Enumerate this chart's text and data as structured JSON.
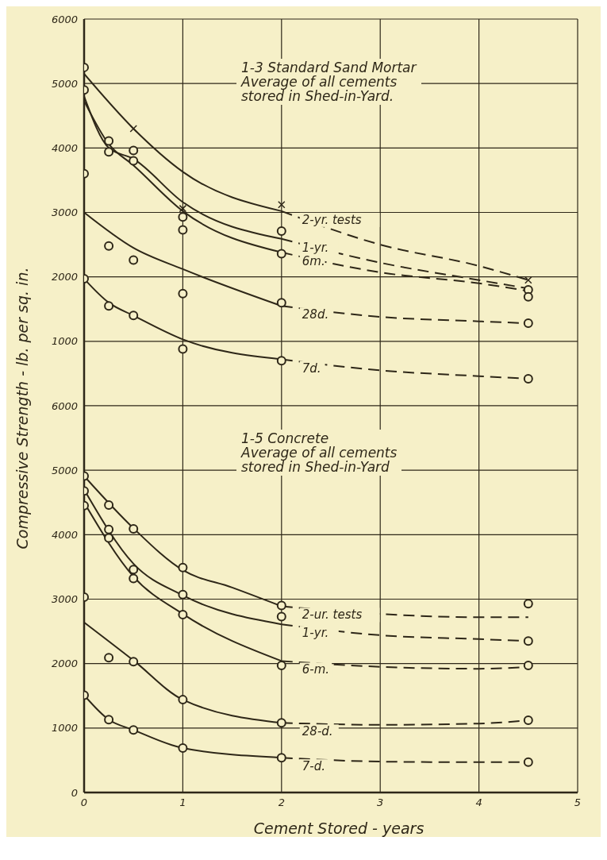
{
  "chart_data": [
    {
      "type": "line",
      "annotations": [
        "1-3 Standard Sand Mortar",
        "Average of all cements",
        "stored in Shed-in-Yard."
      ],
      "ylabel": "Compressive Strength - lb. per sq. in.",
      "xlim": [
        0,
        5
      ],
      "xticks": [
        0,
        1,
        2,
        3,
        4,
        5
      ],
      "ylim": [
        0,
        6000
      ],
      "yticks": [
        1000,
        2000,
        3000,
        4000,
        5000,
        6000
      ],
      "tick_labels": "y",
      "grid": true,
      "legend": false,
      "series": [
        {
          "name": "2-yr. tests",
          "color": "#2e2718",
          "x": [
            0,
            0.5,
            1,
            2
          ],
          "values": [
            5150,
            4300,
            3630,
            3020
          ],
          "line_style": "solid"
        },
        {
          "color": "#2e2718",
          "x": [
            2,
            3,
            4,
            4.5
          ],
          "values": [
            3020,
            2500,
            2170,
            1950
          ],
          "line_style": "dashed"
        },
        {
          "type": "scatter",
          "marker": "cross",
          "color": "#2e2718",
          "x": [
            0.5,
            1,
            2,
            4.5
          ],
          "values": [
            4300,
            3060,
            3120,
            1950
          ]
        },
        {
          "name": "1-yr.",
          "color": "#2e2718",
          "x": [
            0,
            0.25,
            0.5,
            1,
            2
          ],
          "values": [
            4800,
            4000,
            3830,
            3160,
            2590
          ],
          "line_style": "solid"
        },
        {
          "color": "#2e2718",
          "x": [
            2,
            3,
            4,
            4.5
          ],
          "values": [
            2590,
            2220,
            1950,
            1820
          ],
          "line_style": "dashed"
        },
        {
          "type": "scatter",
          "marker": "circle",
          "color": "#2e2718",
          "x": [
            0,
            0.25,
            0.5,
            1,
            2,
            4.5
          ],
          "values": [
            4900,
            3940,
            3960,
            2930,
            2710,
            1800
          ]
        },
        {
          "name": "6m.",
          "color": "#2e2718",
          "x": [
            0,
            0.25,
            0.5,
            1,
            2
          ],
          "values": [
            4730,
            4060,
            3730,
            3020,
            2380
          ],
          "line_style": "solid"
        },
        {
          "color": "#2e2718",
          "x": [
            2,
            3,
            4,
            4.5
          ],
          "values": [
            2380,
            2070,
            1900,
            1780
          ],
          "line_style": "dashed"
        },
        {
          "type": "scatter",
          "marker": "circle",
          "color": "#2e2718",
          "x": [
            0,
            0,
            0.25,
            0.5,
            1,
            2,
            4.5
          ],
          "values": [
            5250,
            3600,
            4110,
            3800,
            2730,
            2360,
            1690
          ]
        },
        {
          "name": "28d.",
          "color": "#2e2718",
          "x": [
            0,
            0.5,
            1,
            2
          ],
          "values": [
            3000,
            2450,
            2120,
            1550
          ],
          "line_style": "solid"
        },
        {
          "color": "#2e2718",
          "x": [
            2,
            3,
            4,
            4.5
          ],
          "values": [
            1550,
            1380,
            1310,
            1280
          ],
          "line_style": "dashed"
        },
        {
          "type": "scatter",
          "marker": "circle",
          "color": "#2e2718",
          "x": [
            0.25,
            0.5,
            1,
            2,
            4.5
          ],
          "values": [
            2480,
            2260,
            1740,
            1600,
            1280
          ]
        },
        {
          "name": "7d.",
          "color": "#2e2718",
          "x": [
            0,
            0.25,
            0.5,
            1,
            2
          ],
          "values": [
            1970,
            1600,
            1400,
            1030,
            720
          ],
          "line_style": "solid"
        },
        {
          "color": "#2e2718",
          "x": [
            2,
            3,
            4,
            4.5
          ],
          "values": [
            720,
            550,
            460,
            420
          ],
          "line_style": "dashed"
        },
        {
          "type": "scatter",
          "marker": "circle",
          "color": "#2e2718",
          "x": [
            0,
            0.25,
            0.5,
            1,
            2,
            4.5
          ],
          "values": [
            1970,
            1550,
            1400,
            880,
            700,
            420
          ]
        }
      ]
    },
    {
      "type": "line",
      "annotations": [
        "1-5 Concrete",
        "Average of all cements",
        "stored in Shed-in-Yard"
      ],
      "xlabel": "Cement Stored - years",
      "xlim": [
        0,
        5
      ],
      "xticks": [
        0,
        1,
        2,
        3,
        4,
        5
      ],
      "ylim": [
        0,
        6000
      ],
      "yticks": [
        0,
        1000,
        2000,
        3000,
        4000,
        5000,
        6000
      ],
      "grid": true,
      "legend": false,
      "series": [
        {
          "name": "2-ur. tests",
          "color": "#2e2718",
          "x": [
            0,
            0.5,
            1,
            1.5,
            2
          ],
          "values": [
            4910,
            4100,
            3450,
            3180,
            2890
          ],
          "line_style": "solid"
        },
        {
          "color": "#2e2718",
          "x": [
            2,
            3,
            4,
            4.5
          ],
          "values": [
            2890,
            2770,
            2720,
            2720
          ],
          "line_style": "dashed"
        },
        {
          "type": "scatter",
          "marker": "circle",
          "color": "#2e2718",
          "x": [
            0,
            0.25,
            0.5,
            1,
            2,
            4.5
          ],
          "values": [
            4910,
            4460,
            4090,
            3490,
            2900,
            2930
          ]
        },
        {
          "name": "1-yr.",
          "color": "#2e2718",
          "x": [
            0,
            0.5,
            1,
            2
          ],
          "values": [
            4700,
            3550,
            3060,
            2610
          ],
          "line_style": "solid"
        },
        {
          "color": "#2e2718",
          "x": [
            2,
            3,
            4,
            4.5
          ],
          "values": [
            2610,
            2440,
            2380,
            2350
          ],
          "line_style": "dashed"
        },
        {
          "type": "scatter",
          "marker": "circle",
          "color": "#2e2718",
          "x": [
            0,
            0.25,
            0.5,
            1,
            2,
            4.5
          ],
          "values": [
            4680,
            4080,
            3460,
            3070,
            2730,
            2350
          ]
        },
        {
          "name": "6-m.",
          "color": "#2e2718",
          "x": [
            0,
            0.5,
            1,
            2
          ],
          "values": [
            4500,
            3350,
            2770,
            2040
          ],
          "line_style": "solid"
        },
        {
          "color": "#2e2718",
          "x": [
            2,
            3,
            4,
            4.5
          ],
          "values": [
            2040,
            1950,
            1920,
            1950
          ],
          "line_style": "dashed"
        },
        {
          "type": "scatter",
          "marker": "circle",
          "color": "#2e2718",
          "x": [
            0,
            0.25,
            0.5,
            1,
            2,
            4.5
          ],
          "values": [
            4450,
            3950,
            3320,
            2760,
            1970,
            1970
          ]
        },
        {
          "name": "28-d.",
          "color": "#2e2718",
          "x": [
            0,
            0.5,
            1,
            2
          ],
          "values": [
            2640,
            2050,
            1440,
            1080
          ],
          "line_style": "solid"
        },
        {
          "color": "#2e2718",
          "x": [
            2,
            3,
            4,
            4.5
          ],
          "values": [
            1080,
            1050,
            1070,
            1120
          ],
          "line_style": "dashed"
        },
        {
          "type": "scatter",
          "marker": "circle",
          "color": "#2e2718",
          "x": [
            0,
            0.25,
            0.5,
            1,
            2,
            4.5
          ],
          "values": [
            3030,
            2090,
            2030,
            1440,
            1080,
            1120
          ]
        },
        {
          "name": "7-d.",
          "color": "#2e2718",
          "x": [
            0,
            0.25,
            0.5,
            1,
            2
          ],
          "values": [
            1510,
            1130,
            970,
            690,
            540
          ],
          "line_style": "solid"
        },
        {
          "color": "#2e2718",
          "x": [
            2,
            3,
            4,
            4.5
          ],
          "values": [
            540,
            480,
            470,
            470
          ],
          "line_style": "dashed"
        },
        {
          "type": "scatter",
          "marker": "circle",
          "color": "#2e2718",
          "x": [
            0,
            0.25,
            0.5,
            1,
            2,
            4.5
          ],
          "values": [
            1510,
            1130,
            970,
            690,
            540,
            470
          ]
        }
      ]
    }
  ]
}
